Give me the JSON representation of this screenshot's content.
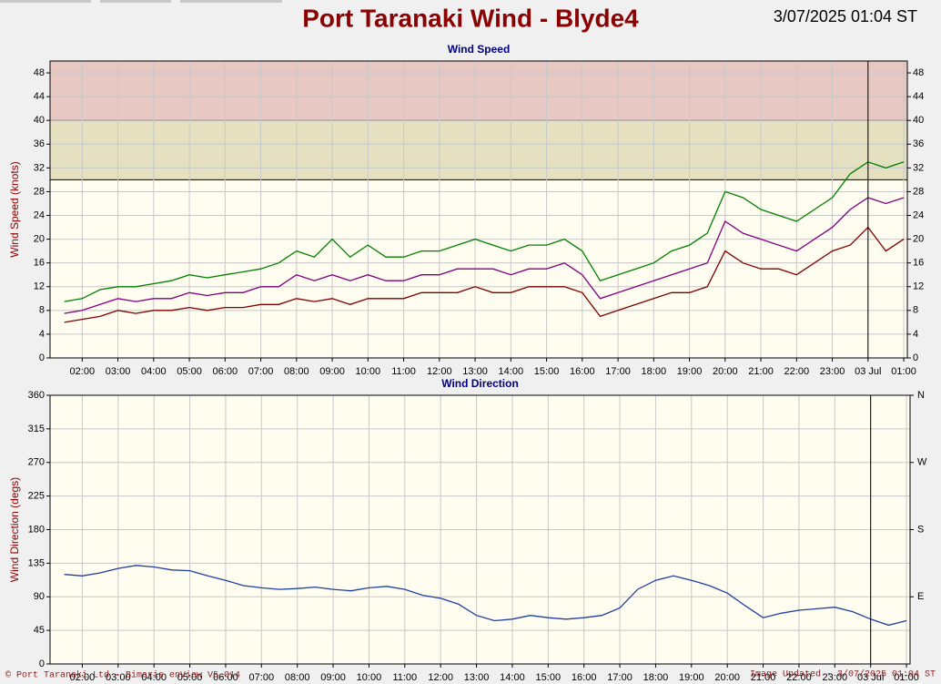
{
  "header": {
    "title": "Port Taranaki Wind - Blyde4",
    "timestamp": "3/07/2025 01:04 ST"
  },
  "chart_data": [
    {
      "type": "line",
      "title": "Wind Speed",
      "y_label": "Wind Speed (knots)",
      "xlim": [
        1.1,
        25.1
      ],
      "xticks": [
        {
          "value": 2,
          "label": "02:00"
        },
        {
          "value": 3,
          "label": "03:00"
        },
        {
          "value": 4,
          "label": "04:00"
        },
        {
          "value": 5,
          "label": "05:00"
        },
        {
          "value": 6,
          "label": "06:00"
        },
        {
          "value": 7,
          "label": "07:00"
        },
        {
          "value": 8,
          "label": "08:00"
        },
        {
          "value": 9,
          "label": "09:00"
        },
        {
          "value": 10,
          "label": "10:00"
        },
        {
          "value": 11,
          "label": "11:00"
        },
        {
          "value": 12,
          "label": "12:00"
        },
        {
          "value": 13,
          "label": "13:00"
        },
        {
          "value": 14,
          "label": "14:00"
        },
        {
          "value": 15,
          "label": "15:00"
        },
        {
          "value": 16,
          "label": "16:00"
        },
        {
          "value": 17,
          "label": "17:00"
        },
        {
          "value": 18,
          "label": "18:00"
        },
        {
          "value": 19,
          "label": "19:00"
        },
        {
          "value": 20,
          "label": "20:00"
        },
        {
          "value": 21,
          "label": "21:00"
        },
        {
          "value": 22,
          "label": "22:00"
        },
        {
          "value": 23,
          "label": "23:00"
        },
        {
          "value": 24,
          "label": "03 Jul"
        },
        {
          "value": 25,
          "label": "01:00"
        }
      ],
      "ylim": [
        0,
        50
      ],
      "yticks": [
        0,
        4,
        8,
        12,
        16,
        20,
        24,
        28,
        32,
        36,
        40,
        44,
        48
      ],
      "mirror_yticks": true,
      "grid": true,
      "marker_x": 24,
      "bands": [
        {
          "from": 30,
          "to": 40,
          "color": "#e4e0c0"
        },
        {
          "from": 40,
          "to": 50,
          "color": "#e8c8c2"
        }
      ],
      "x": [
        1.5,
        2,
        2.5,
        3,
        3.5,
        4,
        4.5,
        5,
        5.5,
        6,
        6.5,
        7,
        7.5,
        8,
        8.5,
        9,
        9.5,
        10,
        10.5,
        11,
        11.5,
        12,
        12.5,
        13,
        13.5,
        14,
        14.5,
        15,
        15.5,
        16,
        16.5,
        17,
        17.5,
        18,
        18.5,
        19,
        19.5,
        20,
        20.5,
        21,
        21.5,
        22,
        22.5,
        23,
        23.5,
        24,
        24.5,
        25
      ],
      "series": [
        {
          "color": "#008000",
          "values": [
            9.5,
            10,
            11.5,
            12,
            12,
            12.5,
            13,
            14,
            13.5,
            14,
            14.5,
            15,
            16,
            18,
            17,
            20,
            17,
            19,
            17,
            17,
            18,
            18,
            19,
            20,
            19,
            18,
            19,
            19,
            20,
            18,
            13,
            14,
            15,
            16,
            18,
            19,
            21,
            28,
            27,
            25,
            24,
            23,
            25,
            27,
            31,
            33,
            32,
            33
          ]
        },
        {
          "color": "#800080",
          "values": [
            7.5,
            8,
            9,
            10,
            9.5,
            10,
            10,
            11,
            10.5,
            11,
            11,
            12,
            12,
            14,
            13,
            14,
            13,
            14,
            13,
            13,
            14,
            14,
            15,
            15,
            15,
            14,
            15,
            15,
            16,
            14,
            10,
            11,
            12,
            13,
            14,
            15,
            16,
            23,
            21,
            20,
            19,
            18,
            20,
            22,
            25,
            27,
            26,
            27
          ]
        },
        {
          "color": "#800000",
          "values": [
            6,
            6.5,
            7,
            8,
            7.5,
            8,
            8,
            8.5,
            8,
            8.5,
            8.5,
            9,
            9,
            10,
            9.5,
            10,
            9,
            10,
            10,
            10,
            11,
            11,
            11,
            12,
            11,
            11,
            12,
            12,
            12,
            11,
            7,
            8,
            9,
            10,
            11,
            11,
            12,
            18,
            16,
            15,
            15,
            14,
            16,
            18,
            19,
            22,
            18,
            20
          ]
        }
      ]
    },
    {
      "type": "line",
      "title": "Wind Direction",
      "y_label": "Wind Direction (degs)",
      "xlim": [
        1.1,
        25.1
      ],
      "xticks": [
        {
          "value": 2,
          "label": "02:00"
        },
        {
          "value": 3,
          "label": "03:00"
        },
        {
          "value": 4,
          "label": "04:00"
        },
        {
          "value": 5,
          "label": "05:00"
        },
        {
          "value": 6,
          "label": "06:00"
        },
        {
          "value": 7,
          "label": "07:00"
        },
        {
          "value": 8,
          "label": "08:00"
        },
        {
          "value": 9,
          "label": "09:00"
        },
        {
          "value": 10,
          "label": "10:00"
        },
        {
          "value": 11,
          "label": "11:00"
        },
        {
          "value": 12,
          "label": "12:00"
        },
        {
          "value": 13,
          "label": "13:00"
        },
        {
          "value": 14,
          "label": "14:00"
        },
        {
          "value": 15,
          "label": "15:00"
        },
        {
          "value": 16,
          "label": "16:00"
        },
        {
          "value": 17,
          "label": "17:00"
        },
        {
          "value": 18,
          "label": "18:00"
        },
        {
          "value": 19,
          "label": "19:00"
        },
        {
          "value": 20,
          "label": "20:00"
        },
        {
          "value": 21,
          "label": "21:00"
        },
        {
          "value": 22,
          "label": "22:00"
        },
        {
          "value": 23,
          "label": "23:00"
        },
        {
          "value": 24,
          "label": "03 Jul"
        },
        {
          "value": 25,
          "label": "01:00"
        }
      ],
      "ylim": [
        0,
        360
      ],
      "yticks": [
        0,
        45,
        90,
        135,
        180,
        225,
        270,
        315,
        360
      ],
      "y2lim": [
        0,
        360
      ],
      "y2ticks": [
        {
          "value": 90,
          "label": "E"
        },
        {
          "value": 180,
          "label": "S"
        },
        {
          "value": 270,
          "label": "W"
        },
        {
          "value": 360,
          "label": "N"
        }
      ],
      "grid": true,
      "marker_x": 24,
      "x": [
        1.5,
        2,
        2.5,
        3,
        3.5,
        4,
        4.5,
        5,
        5.5,
        6,
        6.5,
        7,
        7.5,
        8,
        8.5,
        9,
        9.5,
        10,
        10.5,
        11,
        11.5,
        12,
        12.5,
        13,
        13.5,
        14,
        14.5,
        15,
        15.5,
        16,
        16.5,
        17,
        17.5,
        18,
        18.5,
        19,
        19.5,
        20,
        20.5,
        21,
        21.5,
        22,
        22.5,
        23,
        23.5,
        24,
        24.5,
        25
      ],
      "series": [
        {
          "color": "#1f3fa0",
          "values": [
            120,
            118,
            122,
            128,
            132,
            130,
            126,
            125,
            118,
            112,
            105,
            102,
            100,
            101,
            103,
            100,
            98,
            102,
            104,
            100,
            92,
            88,
            80,
            65,
            58,
            60,
            65,
            62,
            60,
            62,
            65,
            75,
            100,
            112,
            118,
            112,
            105,
            95,
            78,
            62,
            68,
            72,
            74,
            76,
            70,
            60,
            52,
            58
          ]
        }
      ]
    }
  ],
  "footer": {
    "left": "© Port Taranaki Ltd - Bimaris enView V5.014",
    "right": "Image Updated - 3/07/2025 01:04 ST"
  }
}
